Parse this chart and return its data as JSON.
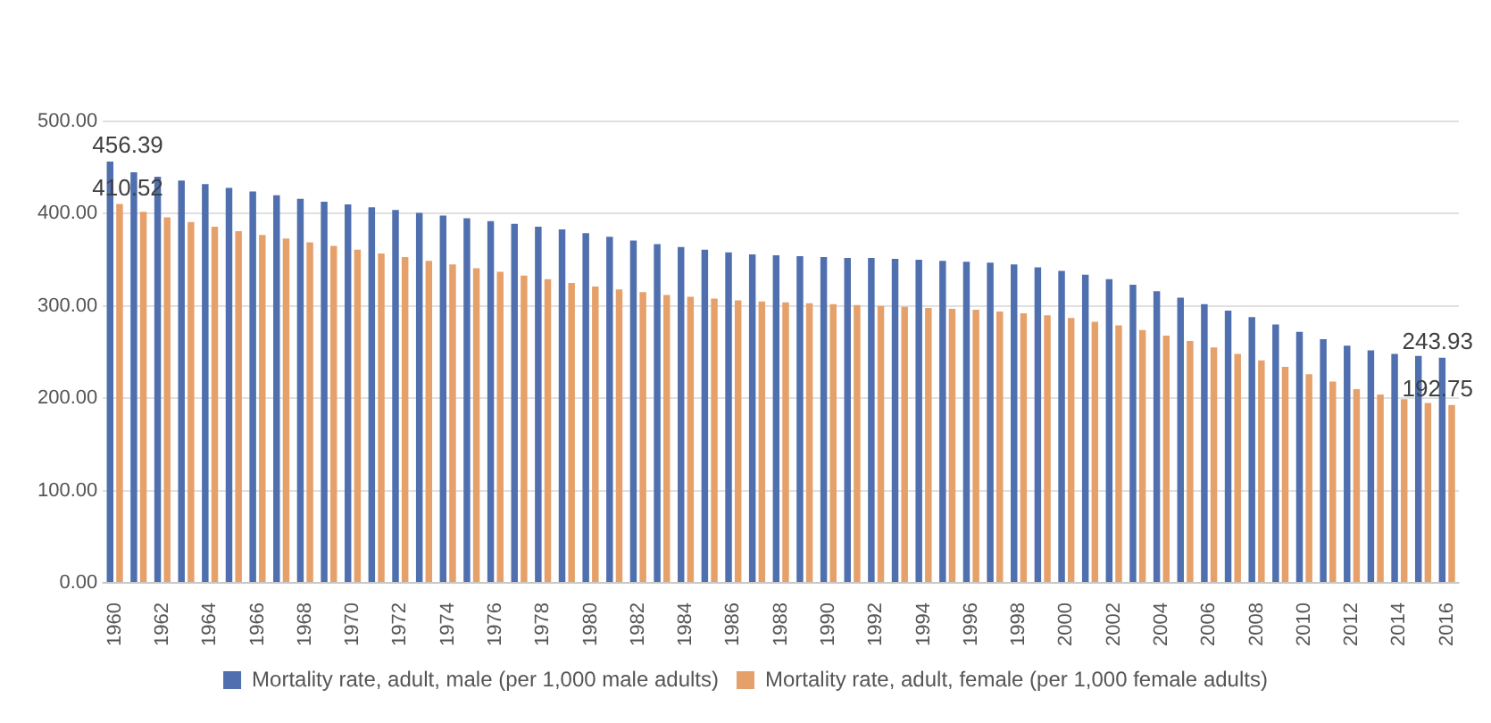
{
  "chart_data": {
    "type": "bar",
    "categories": [
      "1960",
      null,
      "1962",
      null,
      "1964",
      null,
      "1966",
      null,
      "1968",
      null,
      "1970",
      null,
      "1972",
      null,
      "1974",
      null,
      "1976",
      null,
      "1978",
      null,
      "1980",
      null,
      "1982",
      null,
      "1984",
      null,
      "1986",
      null,
      "1988",
      null,
      "1990",
      null,
      "1992",
      null,
      "1994",
      null,
      "1996",
      null,
      "1998",
      null,
      "2000",
      null,
      "2002",
      null,
      "2004",
      null,
      "2006",
      null,
      "2008",
      null,
      "2010",
      null,
      "2012",
      null,
      "2014",
      null,
      "2016"
    ],
    "series": [
      {
        "name": "Mortality rate, adult, male (per 1,000 male adults)",
        "color": "#4f6fae",
        "values": [
          456.39,
          445,
          440,
          436,
          432,
          428,
          424,
          420,
          416,
          413,
          410,
          407,
          404,
          401,
          398,
          395,
          392,
          389,
          386,
          383,
          379,
          375,
          371,
          367,
          364,
          361,
          358,
          356,
          355,
          354,
          353,
          352,
          352,
          351,
          350,
          349,
          348,
          347,
          345,
          342,
          338,
          334,
          329,
          323,
          316,
          309,
          302,
          295,
          288,
          280,
          272,
          264,
          257,
          252,
          248,
          246,
          243.93
        ],
        "value_labels": [
          "456.39",
          null,
          null,
          null,
          null,
          null,
          null,
          null,
          null,
          null,
          null,
          null,
          null,
          null,
          null,
          null,
          null,
          null,
          null,
          null,
          null,
          null,
          null,
          null,
          null,
          null,
          null,
          null,
          null,
          null,
          null,
          null,
          null,
          null,
          null,
          null,
          null,
          null,
          null,
          null,
          null,
          null,
          null,
          null,
          null,
          null,
          null,
          null,
          null,
          null,
          null,
          null,
          null,
          null,
          null,
          null,
          "243.93"
        ]
      },
      {
        "name": "Mortality rate, adult, female (per 1,000 female adults)",
        "color": "#e6a06a",
        "values": [
          410.52,
          402,
          396,
          391,
          386,
          381,
          377,
          373,
          369,
          365,
          361,
          357,
          353,
          349,
          345,
          341,
          337,
          333,
          329,
          325,
          321,
          318,
          315,
          312,
          310,
          308,
          306,
          305,
          304,
          303,
          302,
          301,
          300,
          299,
          298,
          297,
          296,
          294,
          292,
          290,
          287,
          283,
          279,
          274,
          268,
          262,
          255,
          248,
          241,
          234,
          226,
          218,
          210,
          204,
          199,
          195,
          192.75
        ],
        "value_labels": [
          "410.52",
          null,
          null,
          null,
          null,
          null,
          null,
          null,
          null,
          null,
          null,
          null,
          null,
          null,
          null,
          null,
          null,
          null,
          null,
          null,
          null,
          null,
          null,
          null,
          null,
          null,
          null,
          null,
          null,
          null,
          null,
          null,
          null,
          null,
          null,
          null,
          null,
          null,
          null,
          null,
          null,
          null,
          null,
          null,
          null,
          null,
          null,
          null,
          null,
          null,
          null,
          null,
          null,
          null,
          null,
          null,
          "192.75"
        ]
      }
    ],
    "ylim": [
      0,
      500
    ],
    "yticks": [
      {
        "value": 0,
        "label": "0.00"
      },
      {
        "value": 100,
        "label": "100.00"
      },
      {
        "value": 200,
        "label": "200.00"
      },
      {
        "value": 300,
        "label": "300.00"
      },
      {
        "value": 400,
        "label": "400.00"
      },
      {
        "value": 500,
        "label": "500.00"
      }
    ],
    "grid": "y",
    "legend": "bottom"
  }
}
